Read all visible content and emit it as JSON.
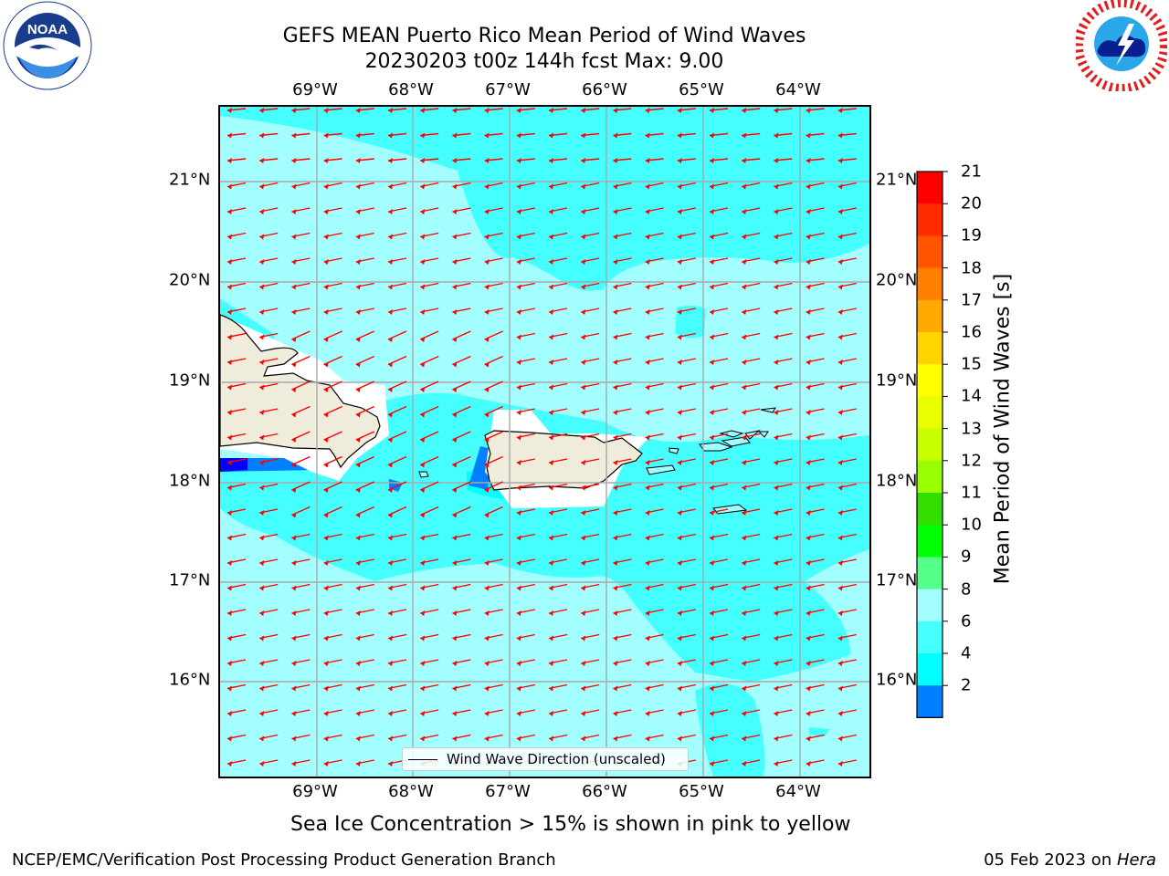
{
  "title": {
    "line1": "GEFS MEAN Puerto Rico Mean Period of Wind Waves",
    "line2": "20230203 t00z 144h fcst   Max: 9.00"
  },
  "logos": {
    "left": "NOAA",
    "right": "NATIONAL WEATHER SERVICE"
  },
  "map": {
    "lon_labels": [
      "69°W",
      "68°W",
      "67°W",
      "66°W",
      "65°W",
      "64°W"
    ],
    "lat_labels": [
      "21°N",
      "20°N",
      "19°N",
      "18°N",
      "17°N",
      "16°N"
    ],
    "legend_label": "Wind Wave Direction (unscaled)",
    "land_color": "#efecdc",
    "ocean_light": "#a3ffff",
    "ocean_mid": "#45ffff",
    "vector_color": "#ff0000"
  },
  "colorbar": {
    "title": "Mean Period of Wind Waves [s]",
    "ticks": [
      "21",
      "20",
      "19",
      "18",
      "17",
      "16",
      "15",
      "14",
      "13",
      "12",
      "11",
      "10",
      "9",
      "8",
      "6",
      "4",
      "2"
    ],
    "colors": [
      "#ff0000",
      "#ff2a00",
      "#ff5500",
      "#ff8000",
      "#ffaa00",
      "#ffd400",
      "#ffff00",
      "#e8ff00",
      "#c8ff00",
      "#99ff00",
      "#33dd00",
      "#00ff00",
      "#55ff88",
      "#a3ffff",
      "#45ffff",
      "#00ffff",
      "#007fff",
      "#0000ff"
    ]
  },
  "subtitle": "Sea Ice Concentration > 15% is shown in pink to yellow",
  "footer": {
    "left": "NCEP/EMC/Verification Post Processing Product Generation Branch",
    "right_prefix": "05 Feb 2023 on ",
    "right_host": "Hera"
  }
}
